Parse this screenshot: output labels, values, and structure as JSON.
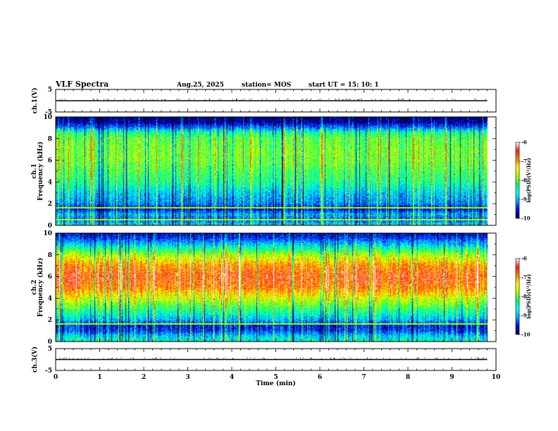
{
  "header": {
    "title": "VLF Spectra",
    "date": "Aug.25, 2025",
    "station": "station= MOS",
    "start": "start  UT  =   15: 10: 1"
  },
  "colors": {
    "background": "#ffffff",
    "axes": "#000000",
    "spectrogram_scale": [
      "#000040",
      "#0000ff",
      "#00a0ff",
      "#00ffff",
      "#00ff60",
      "#b0ff00",
      "#ffff00",
      "#ff8000",
      "#ff2020",
      "#ffffff"
    ]
  },
  "chart_data": [
    {
      "type": "line",
      "panel": "waveform-top",
      "xlabel": "",
      "ylabel": "ch.1(V)",
      "xlim": [
        0,
        10
      ],
      "ylim": [
        -5,
        5
      ],
      "yticks": [
        "5",
        "-5"
      ],
      "x": [
        0,
        9.8
      ],
      "y": [
        0,
        0
      ]
    },
    {
      "type": "heatmap",
      "panel": "spectrogram-ch1",
      "xlabel": "",
      "ylabel": "ch.1 Frequency (kHz)",
      "xlim": [
        0,
        10
      ],
      "ylim": [
        0,
        10
      ],
      "yticks": [
        "0",
        "2",
        "4",
        "6",
        "8",
        "10"
      ],
      "data_extent_min": 9.8,
      "colorbar": {
        "label": "log(PSD)(V^2/Hz)",
        "range": [
          -10,
          -6
        ],
        "ticks": [
          "-6",
          "-7",
          "-8",
          "-9",
          "-10"
        ]
      },
      "band_profile": {
        "freq_khz": [
          0,
          0.5,
          1,
          1.5,
          2,
          3,
          4,
          5,
          6,
          7,
          8,
          8.5,
          9,
          9.5,
          10
        ],
        "log_psd": [
          -8.6,
          -9.3,
          -8.9,
          -9.6,
          -9.1,
          -8.8,
          -8.3,
          -8.1,
          -7.9,
          -7.9,
          -8.0,
          -8.3,
          -9.2,
          -9.8,
          -9.9
        ]
      },
      "horizontal_lines_khz": [
        0.5,
        1.6
      ]
    },
    {
      "type": "heatmap",
      "panel": "spectrogram-ch2",
      "xlabel": "",
      "ylabel": "ch.2 Frequency (kHz)",
      "xlim": [
        0,
        10
      ],
      "ylim": [
        0,
        10
      ],
      "yticks": [
        "0",
        "2",
        "4",
        "6",
        "8",
        "10"
      ],
      "data_extent_min": 9.8,
      "colorbar": {
        "label": "log(PSD)(V^2/Hz)",
        "range": [
          -10,
          -6
        ],
        "ticks": [
          "-6",
          "-7",
          "-8",
          "-9",
          "-10"
        ]
      },
      "band_profile": {
        "freq_khz": [
          0,
          0.5,
          1,
          1.5,
          2,
          3,
          4,
          5,
          6,
          7,
          8,
          8.5,
          9,
          9.5,
          10
        ],
        "log_psd": [
          -8.5,
          -8.8,
          -9.4,
          -9.5,
          -8.9,
          -8.2,
          -7.5,
          -6.8,
          -6.6,
          -6.9,
          -7.7,
          -8.3,
          -8.9,
          -9.4,
          -9.7
        ]
      },
      "horizontal_lines_khz": [
        1.6
      ]
    },
    {
      "type": "line",
      "panel": "waveform-bottom",
      "xlabel": "Time  (min)",
      "ylabel": "ch.3(V)",
      "xlim": [
        0,
        10
      ],
      "ylim": [
        -5,
        5
      ],
      "xticks": [
        "0",
        "1",
        "2",
        "3",
        "4",
        "5",
        "6",
        "7",
        "8",
        "9",
        "10"
      ],
      "yticks": [
        "5",
        "-5"
      ],
      "x": [
        0,
        9.8
      ],
      "y": [
        0,
        0
      ]
    }
  ]
}
